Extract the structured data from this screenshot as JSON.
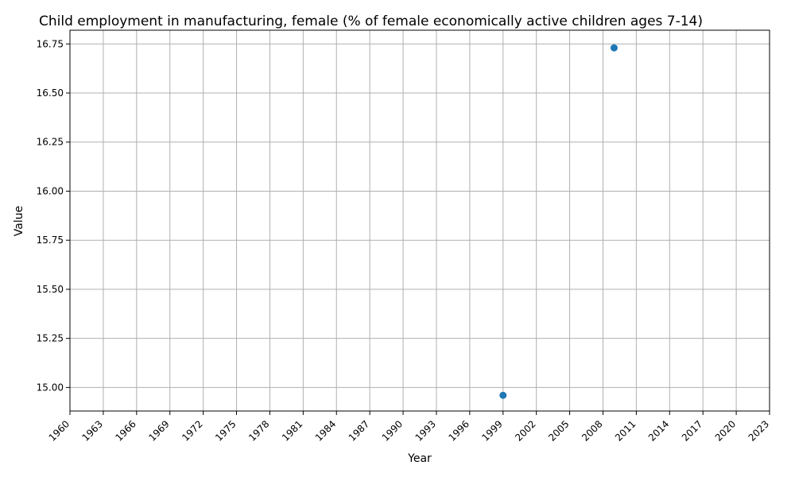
{
  "chart_data": {
    "type": "scatter",
    "title": "Child employment in manufacturing, female (% of female economically active children ages 7-14)",
    "xlabel": "Year",
    "ylabel": "Value",
    "xlim": [
      1960,
      2023
    ],
    "ylim": [
      14.88,
      16.82
    ],
    "x_ticks": [
      1960,
      1963,
      1966,
      1969,
      1972,
      1975,
      1978,
      1981,
      1984,
      1987,
      1990,
      1993,
      1996,
      1999,
      2002,
      2005,
      2008,
      2011,
      2014,
      2017,
      2020,
      2023
    ],
    "y_ticks": [
      15.0,
      15.25,
      15.5,
      15.75,
      16.0,
      16.25,
      16.5,
      16.75
    ],
    "grid": true,
    "marker_color": "#1f77b4",
    "series": [
      {
        "x": [
          1999,
          2009
        ],
        "y": [
          14.96,
          16.73
        ]
      }
    ]
  }
}
